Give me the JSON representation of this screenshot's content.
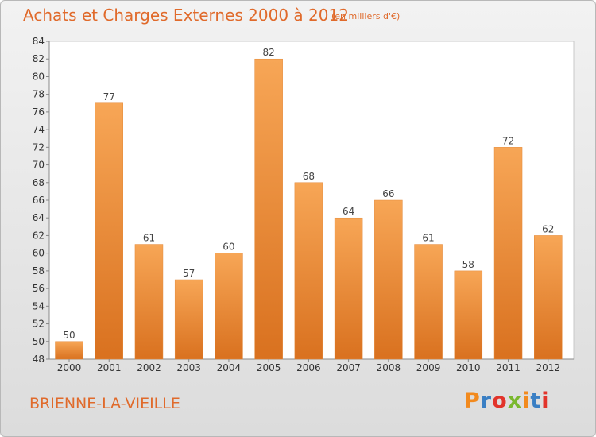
{
  "header": {
    "title": "Achats et Charges Externes 2000 à 2012",
    "unit": "(en milliers d'€)"
  },
  "footer": {
    "commune": "BRIENNE-LA-VIEILLE",
    "logo": "Proxiti"
  },
  "colors": {
    "accent": "#e06a2b",
    "bar_top": "#f7a656",
    "bar_bottom": "#d9711f",
    "logo_letters": [
      "#f28a1e",
      "#3a7fc4",
      "#e2342b",
      "#7ab82e",
      "#f28a1e",
      "#3a7fc4",
      "#e2342b"
    ]
  },
  "chart_data": {
    "type": "bar",
    "title": "Achats et Charges Externes 2000 à 2012",
    "subtitle": "(en milliers d'€)",
    "xlabel": "",
    "ylabel": "",
    "categories": [
      "2000",
      "2001",
      "2002",
      "2003",
      "2004",
      "2005",
      "2006",
      "2007",
      "2008",
      "2009",
      "2010",
      "2011",
      "2012"
    ],
    "values": [
      50,
      77,
      61,
      57,
      60,
      82,
      68,
      64,
      66,
      61,
      58,
      72,
      62
    ],
    "ylim": [
      48,
      84
    ],
    "yticks": [
      48,
      50,
      52,
      54,
      56,
      58,
      60,
      62,
      64,
      66,
      68,
      70,
      72,
      74,
      76,
      78,
      80,
      82,
      84
    ],
    "grid": false,
    "legend": "none"
  }
}
